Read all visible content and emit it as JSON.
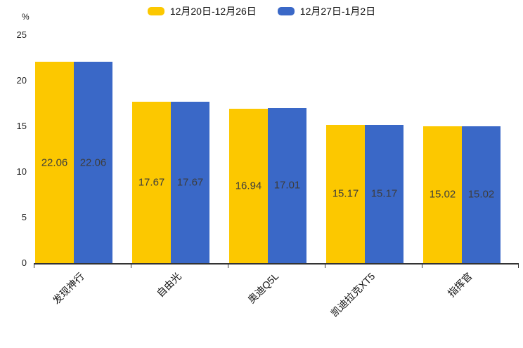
{
  "legend": {
    "items": [
      {
        "label": "12月20日-12月26日",
        "color": "#FCC800"
      },
      {
        "label": "12月27日-1月2日",
        "color": "#3A68C7"
      }
    ]
  },
  "chart_data": {
    "type": "bar",
    "title": "",
    "xlabel": "",
    "ylabel": "%",
    "ylim": [
      0,
      25
    ],
    "yticks": [
      0,
      5,
      10,
      15,
      20,
      25
    ],
    "grid": false,
    "legend_position": "top-center",
    "categories": [
      "发现神行",
      "自由光",
      "奥迪Q5L",
      "凯迪拉克XT5",
      "指挥官"
    ],
    "series": [
      {
        "name": "12月20日-12月26日",
        "color": "#FCC800",
        "values": [
          22.06,
          17.67,
          16.94,
          15.17,
          15.02
        ]
      },
      {
        "name": "12月27日-1月2日",
        "color": "#3A68C7",
        "values": [
          22.06,
          17.67,
          17.01,
          15.17,
          15.02
        ]
      }
    ],
    "value_label_color": "#3d3d3d"
  }
}
